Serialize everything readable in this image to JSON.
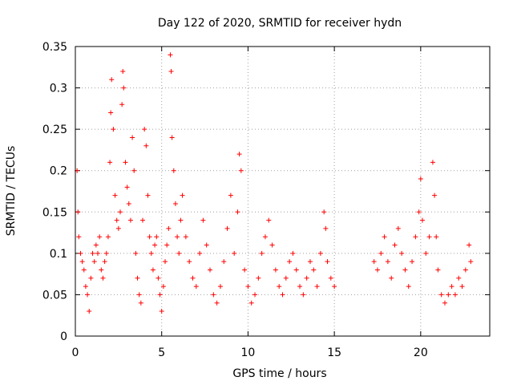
{
  "chart_data": {
    "type": "scatter",
    "title": "Day 122 of 2020, SRMTID for receiver hydn",
    "xlabel": "GPS time / hours",
    "ylabel": "SRMTID / TECUs",
    "xlim": [
      0,
      24
    ],
    "ylim": [
      0,
      0.35
    ],
    "xticks": [
      0,
      5,
      10,
      15,
      20
    ],
    "yticks": [
      0,
      0.05,
      0.1,
      0.15,
      0.2,
      0.25,
      0.3,
      0.35
    ],
    "ytick_labels": [
      "0",
      "0.05",
      "0.1",
      "0.15",
      "0.2",
      "0.25",
      "0.3",
      "0.35"
    ],
    "grid": true,
    "marker": "+",
    "color": "#ff0000",
    "series": [
      {
        "name": "SRMTID",
        "points": [
          [
            0.1,
            0.2
          ],
          [
            0.15,
            0.15
          ],
          [
            0.2,
            0.12
          ],
          [
            0.3,
            0.1
          ],
          [
            0.4,
            0.09
          ],
          [
            0.5,
            0.08
          ],
          [
            0.6,
            0.06
          ],
          [
            0.7,
            0.05
          ],
          [
            0.8,
            0.03
          ],
          [
            0.9,
            0.07
          ],
          [
            1.0,
            0.1
          ],
          [
            1.1,
            0.09
          ],
          [
            1.2,
            0.11
          ],
          [
            1.3,
            0.1
          ],
          [
            1.4,
            0.12
          ],
          [
            1.5,
            0.08
          ],
          [
            1.6,
            0.07
          ],
          [
            1.7,
            0.09
          ],
          [
            1.8,
            0.1
          ],
          [
            1.9,
            0.12
          ],
          [
            2.0,
            0.21
          ],
          [
            2.05,
            0.27
          ],
          [
            2.1,
            0.31
          ],
          [
            2.2,
            0.25
          ],
          [
            2.3,
            0.17
          ],
          [
            2.4,
            0.14
          ],
          [
            2.5,
            0.13
          ],
          [
            2.6,
            0.15
          ],
          [
            2.7,
            0.28
          ],
          [
            2.75,
            0.32
          ],
          [
            2.8,
            0.3
          ],
          [
            2.9,
            0.21
          ],
          [
            3.0,
            0.18
          ],
          [
            3.1,
            0.16
          ],
          [
            3.2,
            0.14
          ],
          [
            3.3,
            0.24
          ],
          [
            3.4,
            0.2
          ],
          [
            3.5,
            0.1
          ],
          [
            3.6,
            0.07
          ],
          [
            3.7,
            0.05
          ],
          [
            3.8,
            0.04
          ],
          [
            3.9,
            0.14
          ],
          [
            4.0,
            0.25
          ],
          [
            4.1,
            0.23
          ],
          [
            4.2,
            0.17
          ],
          [
            4.3,
            0.12
          ],
          [
            4.4,
            0.1
          ],
          [
            4.5,
            0.08
          ],
          [
            4.6,
            0.11
          ],
          [
            4.7,
            0.12
          ],
          [
            4.8,
            0.07
          ],
          [
            4.9,
            0.05
          ],
          [
            5.0,
            0.03
          ],
          [
            5.1,
            0.06
          ],
          [
            5.2,
            0.09
          ],
          [
            5.3,
            0.11
          ],
          [
            5.4,
            0.13
          ],
          [
            5.5,
            0.34
          ],
          [
            5.55,
            0.32
          ],
          [
            5.6,
            0.24
          ],
          [
            5.7,
            0.2
          ],
          [
            5.8,
            0.16
          ],
          [
            5.9,
            0.12
          ],
          [
            6.0,
            0.1
          ],
          [
            6.1,
            0.14
          ],
          [
            6.2,
            0.17
          ],
          [
            6.4,
            0.12
          ],
          [
            6.6,
            0.09
          ],
          [
            6.8,
            0.07
          ],
          [
            7.0,
            0.06
          ],
          [
            7.2,
            0.1
          ],
          [
            7.4,
            0.14
          ],
          [
            7.6,
            0.11
          ],
          [
            7.8,
            0.08
          ],
          [
            8.0,
            0.05
          ],
          [
            8.2,
            0.04
          ],
          [
            8.4,
            0.06
          ],
          [
            8.6,
            0.09
          ],
          [
            8.8,
            0.13
          ],
          [
            9.0,
            0.17
          ],
          [
            9.2,
            0.1
          ],
          [
            9.4,
            0.15
          ],
          [
            9.5,
            0.22
          ],
          [
            9.6,
            0.2
          ],
          [
            9.8,
            0.08
          ],
          [
            10.0,
            0.06
          ],
          [
            10.2,
            0.04
          ],
          [
            10.4,
            0.05
          ],
          [
            10.6,
            0.07
          ],
          [
            10.8,
            0.1
          ],
          [
            11.0,
            0.12
          ],
          [
            11.2,
            0.14
          ],
          [
            11.4,
            0.11
          ],
          [
            11.6,
            0.08
          ],
          [
            11.8,
            0.06
          ],
          [
            12.0,
            0.05
          ],
          [
            12.2,
            0.07
          ],
          [
            12.4,
            0.09
          ],
          [
            12.6,
            0.1
          ],
          [
            12.8,
            0.08
          ],
          [
            13.0,
            0.06
          ],
          [
            13.2,
            0.05
          ],
          [
            13.4,
            0.07
          ],
          [
            13.6,
            0.09
          ],
          [
            13.8,
            0.08
          ],
          [
            14.0,
            0.06
          ],
          [
            14.2,
            0.1
          ],
          [
            14.4,
            0.15
          ],
          [
            14.5,
            0.13
          ],
          [
            14.6,
            0.09
          ],
          [
            14.8,
            0.07
          ],
          [
            15.0,
            0.06
          ],
          [
            17.3,
            0.09
          ],
          [
            17.5,
            0.08
          ],
          [
            17.7,
            0.1
          ],
          [
            17.9,
            0.12
          ],
          [
            18.1,
            0.09
          ],
          [
            18.3,
            0.07
          ],
          [
            18.5,
            0.11
          ],
          [
            18.7,
            0.13
          ],
          [
            18.9,
            0.1
          ],
          [
            19.1,
            0.08
          ],
          [
            19.3,
            0.06
          ],
          [
            19.5,
            0.09
          ],
          [
            19.7,
            0.12
          ],
          [
            19.9,
            0.15
          ],
          [
            20.0,
            0.19
          ],
          [
            20.1,
            0.14
          ],
          [
            20.3,
            0.1
          ],
          [
            20.5,
            0.12
          ],
          [
            20.7,
            0.21
          ],
          [
            20.8,
            0.17
          ],
          [
            20.9,
            0.12
          ],
          [
            21.0,
            0.08
          ],
          [
            21.2,
            0.05
          ],
          [
            21.4,
            0.04
          ],
          [
            21.6,
            0.05
          ],
          [
            21.8,
            0.06
          ],
          [
            22.0,
            0.05
          ],
          [
            22.2,
            0.07
          ],
          [
            22.4,
            0.06
          ],
          [
            22.6,
            0.08
          ],
          [
            22.8,
            0.11
          ],
          [
            22.9,
            0.09
          ]
        ]
      }
    ]
  }
}
